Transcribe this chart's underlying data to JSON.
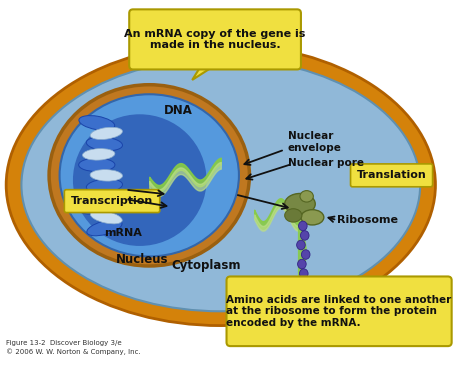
{
  "background_color": "#FFFFFF",
  "cell_outer_color": "#D4820A",
  "cell_outer_edge": "#B06000",
  "cell_inner_color": "#90B8D8",
  "cell_inner_edge": "#6090B0",
  "nucleus_ring_color": "#C07820",
  "nucleus_ring_edge": "#9A6010",
  "nucleus_blue_color": "#5599DD",
  "nucleus_blue_edge": "#3366AA",
  "nucleus_dark_color": "#3366BB",
  "dna_blue_color": "#3366CC",
  "dna_light_color": "#AACCEE",
  "mrna_green": "#88CC44",
  "mrna_light": "#BBDD88",
  "ribosome_color": "#778844",
  "ribosome_edge": "#556622",
  "bead_color": "#5544AA",
  "bead_edge": "#332288",
  "yellow_box": "#F0E040",
  "yellow_edge": "#AA9900",
  "arrow_color": "#111111",
  "text_color": "#111111",
  "callout1_text": "An mRNA copy of the gene is\nmade in the nucleus.",
  "callout2_text": "Amino acids are linked to one another\nat the ribosome to form the protein\nencoded by the mRNA.",
  "label_transcription": "Transcription",
  "label_translation": "Translation",
  "label_dna": "DNA",
  "label_mrna": "mRNA",
  "label_nucleus": "Nucleus",
  "label_cytoplasm": "Cytoplasm",
  "label_nuclear_envelope": "Nuclear\nenvelope",
  "label_nuclear_pore": "Nuclear pore",
  "label_ribosome": "Ribosome",
  "caption": "Figure 13-2  Discover Biology 3/e\n© 2006 W. W. Norton & Company, Inc."
}
